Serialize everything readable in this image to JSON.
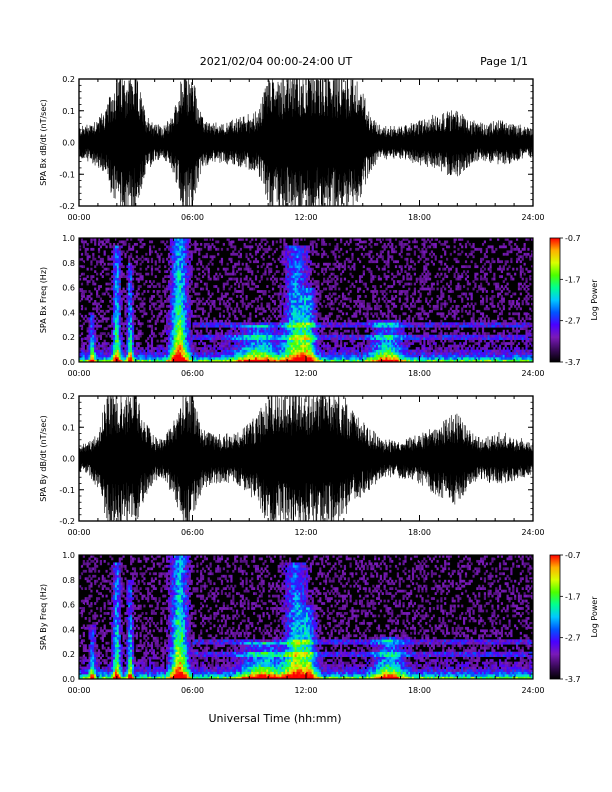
{
  "header": {
    "title": "2021/02/04  00:00-24:00 UT",
    "page": "Page 1/1"
  },
  "footer": {
    "xlabel": "Universal Time (hh:mm)"
  },
  "colors": {
    "background": "#000000",
    "trace": "#000000",
    "colormap": [
      "#000000",
      "#3a0a5a",
      "#7a1ab8",
      "#4a00ff",
      "#0055ff",
      "#00c8ff",
      "#00ff90",
      "#4cff00",
      "#d8ff00",
      "#ffb000",
      "#ff3000",
      "#ff0000"
    ]
  },
  "chart_data": [
    {
      "type": "line",
      "ylabel": "SPA Bx dB/dt (nT/sec)",
      "xticks": [
        "00:00",
        "06:00",
        "12:00",
        "18:00",
        "24:00"
      ],
      "xlim": [
        0,
        24
      ],
      "ylim": [
        -0.2,
        0.2
      ],
      "yticks": [
        "-0.2",
        "-0.1",
        "0.0",
        "0.1",
        "0.2"
      ],
      "activity_envelope": {
        "hours": [
          0,
          0.5,
          1,
          1.5,
          2,
          2.5,
          3,
          3.5,
          4,
          4.5,
          5,
          5.5,
          6,
          6.5,
          7,
          7.5,
          8,
          8.5,
          9,
          9.5,
          10,
          10.5,
          11,
          11.5,
          12,
          12.5,
          13,
          13.5,
          14,
          14.5,
          15,
          15.5,
          16,
          16.5,
          17,
          17.5,
          18,
          18.5,
          19,
          19.5,
          20,
          20.5,
          21,
          21.5,
          22,
          22.5,
          23,
          23.5,
          24
        ],
        "amplitude": [
          0.05,
          0.06,
          0.08,
          0.12,
          0.22,
          0.22,
          0.22,
          0.1,
          0.06,
          0.05,
          0.1,
          0.22,
          0.22,
          0.08,
          0.06,
          0.06,
          0.07,
          0.08,
          0.09,
          0.1,
          0.22,
          0.22,
          0.22,
          0.22,
          0.22,
          0.22,
          0.22,
          0.22,
          0.22,
          0.22,
          0.16,
          0.08,
          0.05,
          0.05,
          0.05,
          0.06,
          0.07,
          0.08,
          0.09,
          0.1,
          0.11,
          0.08,
          0.06,
          0.06,
          0.07,
          0.07,
          0.06,
          0.05,
          0.05
        ]
      }
    },
    {
      "type": "heatmap",
      "ylabel": "SPA Bx Freq (Hz)",
      "xticks": [
        "00:00",
        "06:00",
        "12:00",
        "18:00",
        "24:00"
      ],
      "xlim": [
        0,
        24
      ],
      "ylim": [
        0,
        1
      ],
      "yticks": [
        "0.0",
        "0.2",
        "0.4",
        "0.6",
        "0.8",
        "1.0"
      ],
      "colorbar": {
        "label": "Log Power",
        "ticks": [
          "-0.7",
          "-1.7",
          "-2.7",
          "-3.7"
        ],
        "range": [
          -3.7,
          -0.7
        ]
      },
      "bursts": [
        {
          "hour": 0.7,
          "width": 0.15,
          "height": 0.4,
          "power": 0.5
        },
        {
          "hour": 2.0,
          "width": 0.2,
          "height": 0.95,
          "power": 0.6
        },
        {
          "hour": 2.7,
          "width": 0.15,
          "height": 0.8,
          "power": 0.55
        },
        {
          "hour": 5.3,
          "width": 0.45,
          "height": 1.0,
          "power": 0.75
        },
        {
          "hour": 9.5,
          "width": 1.2,
          "height": 0.3,
          "power": 0.5
        },
        {
          "hour": 11.5,
          "width": 0.6,
          "height": 0.95,
          "power": 0.6
        },
        {
          "hour": 12.2,
          "width": 0.4,
          "height": 0.6,
          "power": 0.45
        },
        {
          "hour": 16.3,
          "width": 0.8,
          "height": 0.35,
          "power": 0.5
        }
      ],
      "bands_hz": [
        0.2,
        0.3
      ]
    },
    {
      "type": "line",
      "ylabel": "SPA By dB/dt (nT/sec)",
      "xticks": [
        "00:00",
        "06:00",
        "12:00",
        "18:00",
        "24:00"
      ],
      "xlim": [
        0,
        24
      ],
      "ylim": [
        -0.2,
        0.2
      ],
      "yticks": [
        "-0.2",
        "-0.1",
        "0.0",
        "0.1",
        "0.2"
      ],
      "activity_envelope": {
        "hours": [
          0,
          0.5,
          1,
          1.5,
          2,
          2.5,
          3,
          3.5,
          4,
          4.5,
          5,
          5.5,
          6,
          6.5,
          7,
          7.5,
          8,
          8.5,
          9,
          9.5,
          10,
          10.5,
          11,
          11.5,
          12,
          12.5,
          13,
          13.5,
          14,
          14.5,
          15,
          15.5,
          16,
          16.5,
          17,
          17.5,
          18,
          18.5,
          19,
          19.5,
          20,
          20.5,
          21,
          21.5,
          22,
          22.5,
          23,
          23.5,
          24
        ],
        "amplitude": [
          0.04,
          0.05,
          0.1,
          0.22,
          0.22,
          0.22,
          0.22,
          0.12,
          0.07,
          0.07,
          0.12,
          0.22,
          0.22,
          0.1,
          0.08,
          0.08,
          0.08,
          0.09,
          0.12,
          0.14,
          0.22,
          0.22,
          0.22,
          0.22,
          0.22,
          0.22,
          0.22,
          0.22,
          0.2,
          0.15,
          0.12,
          0.09,
          0.06,
          0.06,
          0.06,
          0.07,
          0.08,
          0.1,
          0.12,
          0.14,
          0.15,
          0.1,
          0.07,
          0.07,
          0.08,
          0.08,
          0.07,
          0.06,
          0.05
        ]
      }
    },
    {
      "type": "heatmap",
      "ylabel": "SPA By Freq (Hz)",
      "xticks": [
        "00:00",
        "06:00",
        "12:00",
        "18:00",
        "24:00"
      ],
      "xlim": [
        0,
        24
      ],
      "ylim": [
        0,
        1
      ],
      "yticks": [
        "0.0",
        "0.2",
        "0.4",
        "0.6",
        "0.8",
        "1.0"
      ],
      "colorbar": {
        "label": "Log Power",
        "ticks": [
          "-0.7",
          "-1.7",
          "-2.7",
          "-3.7"
        ],
        "range": [
          -3.7,
          -0.7
        ]
      },
      "bursts": [
        {
          "hour": 0.7,
          "width": 0.15,
          "height": 0.45,
          "power": 0.5
        },
        {
          "hour": 2.0,
          "width": 0.2,
          "height": 0.95,
          "power": 0.6
        },
        {
          "hour": 2.7,
          "width": 0.15,
          "height": 0.8,
          "power": 0.55
        },
        {
          "hour": 5.3,
          "width": 0.45,
          "height": 1.0,
          "power": 0.75
        },
        {
          "hour": 9.8,
          "width": 1.2,
          "height": 0.3,
          "power": 0.55
        },
        {
          "hour": 11.5,
          "width": 0.6,
          "height": 0.95,
          "power": 0.6
        },
        {
          "hour": 12.2,
          "width": 0.4,
          "height": 0.6,
          "power": 0.45
        },
        {
          "hour": 16.4,
          "width": 0.8,
          "height": 0.35,
          "power": 0.5
        }
      ],
      "bands_hz": [
        0.2,
        0.3
      ]
    }
  ]
}
